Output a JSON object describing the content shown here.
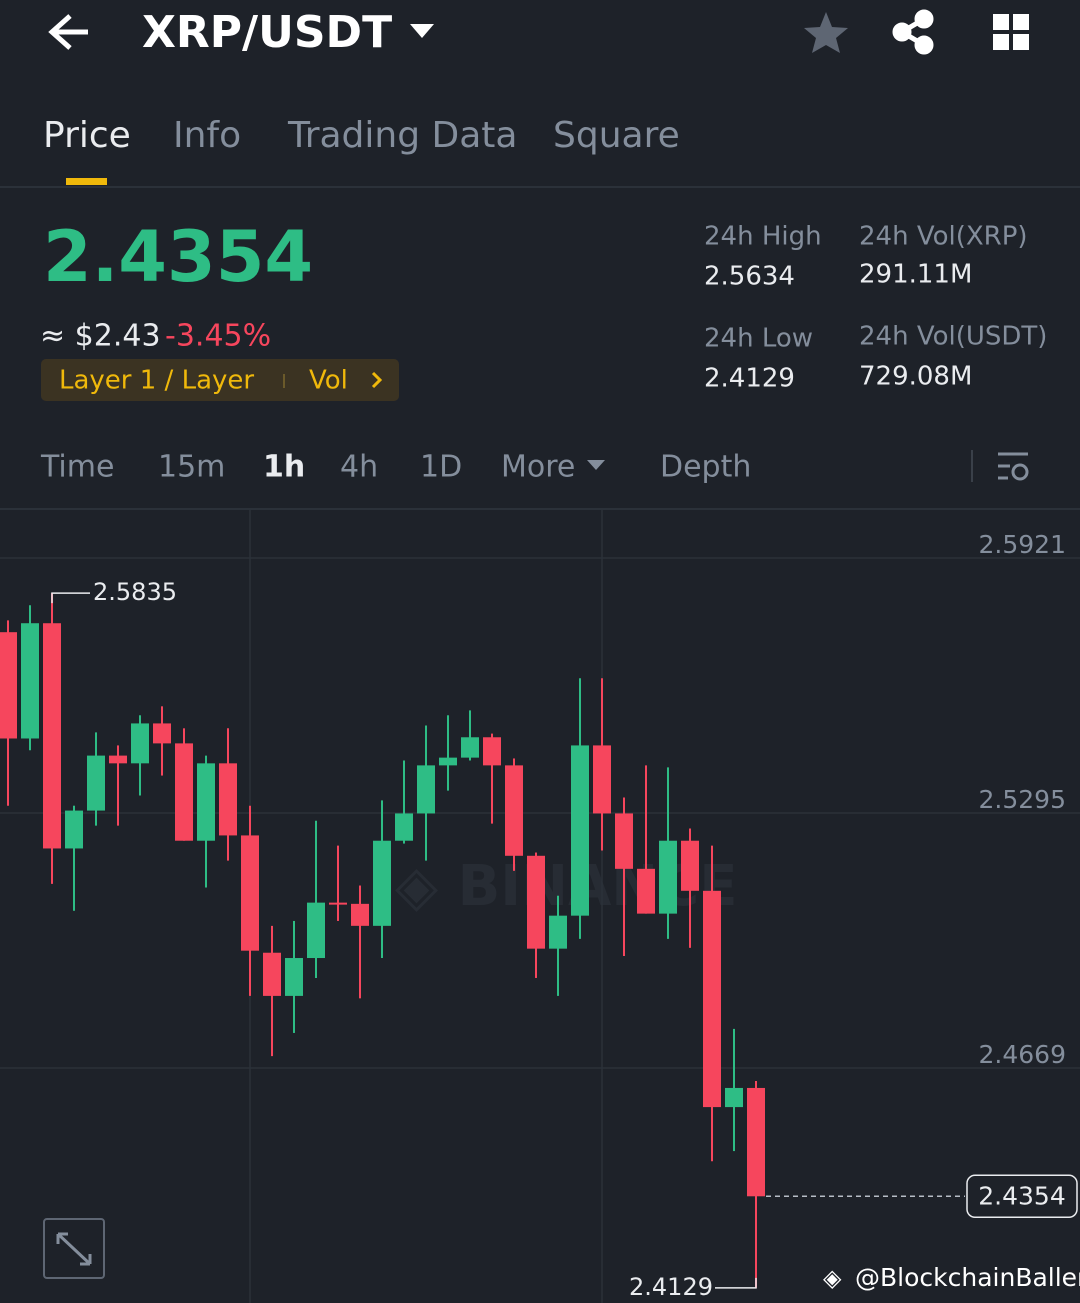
{
  "header": {
    "pair": "XRP/USDT"
  },
  "tabs": [
    "Price",
    "Info",
    "Trading Data",
    "Square"
  ],
  "ticker": {
    "price": "2.4354",
    "fiat": "≈ $2.43",
    "change": "-3.45%",
    "tag": "Layer 1 / Layer",
    "tag_action": "Vol"
  },
  "stats": [
    {
      "label": "24h High",
      "value": "2.5634"
    },
    {
      "label": "24h Vol(XRP)",
      "value": "291.11M"
    },
    {
      "label": "24h Low",
      "value": "2.4129"
    },
    {
      "label": "24h Vol(USDT)",
      "value": "729.08M"
    }
  ],
  "intervals": [
    "Time",
    "15m",
    "1h",
    "4h",
    "1D",
    "More"
  ],
  "depth": "Depth",
  "watermark": "@BlockchainBaller",
  "chart_data": {
    "type": "candlestick",
    "open": [
      2.5739,
      2.5478,
      2.5761,
      2.5208,
      2.5301,
      2.5436,
      2.5417,
      2.5515,
      2.5466,
      2.5227,
      2.5417,
      2.524,
      2.4952,
      2.4846,
      2.4939,
      2.5075,
      2.5072,
      2.5018,
      2.5227,
      2.5294,
      2.5412,
      2.5431,
      2.5481,
      2.5412,
      2.519,
      2.4962,
      2.5043,
      2.5461,
      2.5294,
      2.5158,
      2.5048,
      2.5227,
      2.5104,
      2.4573,
      2.462
    ],
    "high": [
      2.5768,
      2.5805,
      2.5835,
      2.5313,
      2.5493,
      2.5461,
      2.5535,
      2.5557,
      2.5503,
      2.5436,
      2.5503,
      2.5313,
      2.5018,
      2.503,
      2.5276,
      2.5215,
      2.5117,
      2.5326,
      2.5424,
      2.551,
      2.5535,
      2.5547,
      2.549,
      2.5429,
      2.5198,
      2.5092,
      2.5626,
      2.5626,
      2.5333,
      2.5412,
      2.5407,
      2.5257,
      2.5215,
      2.4765,
      2.4637
    ],
    "low": [
      2.5313,
      2.5449,
      2.5121,
      2.5055,
      2.5264,
      2.5264,
      2.5338,
      2.5387,
      2.5227,
      2.5112,
      2.5178,
      2.4846,
      2.4698,
      2.4755,
      2.489,
      2.503,
      2.484,
      2.4939,
      2.522,
      2.5178,
      2.535,
      2.5424,
      2.5269,
      2.5153,
      2.489,
      2.4846,
      2.4986,
      2.5203,
      2.4944,
      2.5048,
      2.4986,
      2.4964,
      2.444,
      2.4465,
      2.4129
    ],
    "close": [
      2.5478,
      2.5761,
      2.5208,
      2.5301,
      2.5436,
      2.5417,
      2.5515,
      2.5466,
      2.5227,
      2.5417,
      2.524,
      2.4957,
      2.4846,
      2.4939,
      2.5075,
      2.5072,
      2.5018,
      2.5227,
      2.5294,
      2.5412,
      2.5431,
      2.5481,
      2.5412,
      2.519,
      2.4962,
      2.5043,
      2.5461,
      2.5294,
      2.5158,
      2.5048,
      2.5227,
      2.5104,
      2.4573,
      2.462,
      2.4354
    ],
    "up_color": "#2ebd85",
    "down_color": "#f6465d",
    "ylim": [
      2.4092,
      2.6039
    ],
    "yticks": [
      2.5921,
      2.5295,
      2.4669
    ],
    "grid": true
  }
}
